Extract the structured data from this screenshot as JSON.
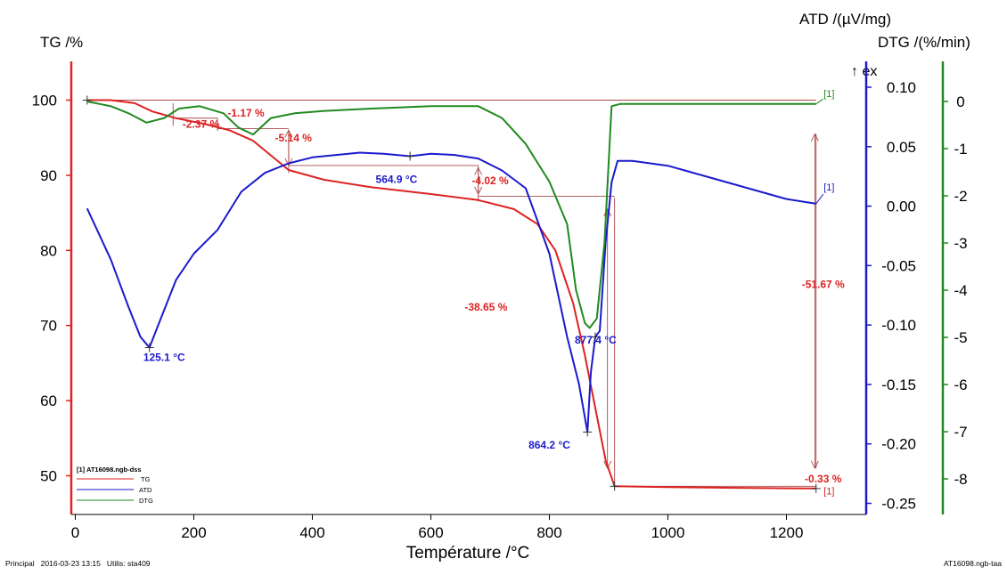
{
  "chart_data": {
    "type": "line",
    "xlabel": "Température /°C",
    "xlim": [
      0,
      1300
    ],
    "x_ticks": [
      0,
      200,
      400,
      600,
      800,
      1000,
      1200
    ],
    "axes": {
      "tg": {
        "label": "TG /%",
        "ylim": [
          46,
          102
        ],
        "ticks": [
          50,
          60,
          70,
          80,
          90,
          100
        ],
        "color": "#dd2222"
      },
      "atd": {
        "label": "ATD /(µV/mg)",
        "ylim": [
          -0.258,
          0.118
        ],
        "ticks": [
          "0.10",
          "0.05",
          "0.00",
          "-0.05",
          "-0.10",
          "-0.15",
          "-0.20",
          "-0.25"
        ],
        "color": "#1a1acc"
      },
      "dtg": {
        "label": "DTG /(%/min)",
        "ylim": [
          -8.75,
          0.55
        ],
        "ticks": [
          "0",
          "-1",
          "-2",
          "-3",
          "-4",
          "-5",
          "-6",
          "-7",
          "-8"
        ],
        "color": "#1f8a1f"
      }
    },
    "exo_label": "↑ ex",
    "series": [
      {
        "name": "TG",
        "axis": "tg",
        "color": "#dd2222",
        "x": [
          20,
          60,
          100,
          130,
          170,
          220,
          260,
          300,
          360,
          420,
          500,
          600,
          680,
          740,
          780,
          810,
          840,
          860,
          880,
          895,
          910,
          1000,
          1100,
          1250
        ],
        "y": [
          100,
          100,
          99.6,
          98.5,
          97.6,
          96.8,
          96.0,
          94.6,
          90.7,
          89.4,
          88.4,
          87.5,
          86.7,
          85.5,
          83.5,
          80.0,
          73.0,
          66.0,
          58.0,
          52.0,
          48.6,
          48.5,
          48.4,
          48.3
        ]
      },
      {
        "name": "ATD",
        "axis": "atd",
        "color": "#1a1acc",
        "x": [
          20,
          60,
          90,
          110,
          125.1,
          140,
          170,
          200,
          240,
          280,
          320,
          360,
          400,
          440,
          480,
          520,
          564.9,
          600,
          640,
          680,
          720,
          760,
          800,
          830,
          850,
          864.2,
          870,
          877.4,
          885,
          895,
          905,
          915,
          940,
          1000,
          1100,
          1200,
          1250
        ],
        "y": [
          -0.002,
          -0.045,
          -0.085,
          -0.11,
          -0.119,
          -0.1,
          -0.062,
          -0.04,
          -0.02,
          0.012,
          0.028,
          0.036,
          0.041,
          0.043,
          0.045,
          0.044,
          0.042,
          0.044,
          0.043,
          0.04,
          0.03,
          0.015,
          -0.04,
          -0.11,
          -0.15,
          -0.19,
          -0.14,
          -0.11,
          -0.105,
          -0.03,
          0.02,
          0.038,
          0.038,
          0.034,
          0.02,
          0.006,
          0.002
        ]
      },
      {
        "name": "DTG",
        "axis": "dtg",
        "color": "#1f8a1f",
        "x": [
          20,
          60,
          90,
          120,
          150,
          175,
          210,
          250,
          275,
          300,
          330,
          370,
          420,
          500,
          600,
          680,
          720,
          760,
          800,
          830,
          845,
          860,
          868,
          880,
          893,
          905,
          920,
          1000,
          1100,
          1250
        ],
        "y": [
          0,
          -0.1,
          -0.25,
          -0.45,
          -0.35,
          -0.15,
          -0.1,
          -0.25,
          -0.55,
          -0.7,
          -0.35,
          -0.25,
          -0.2,
          -0.15,
          -0.1,
          -0.1,
          -0.35,
          -0.9,
          -1.7,
          -2.6,
          -4.0,
          -4.7,
          -4.8,
          -4.6,
          -3.0,
          -0.1,
          -0.05,
          -0.05,
          -0.05,
          -0.05
        ]
      }
    ],
    "annotations": [
      {
        "text": "-2.37 %",
        "x": 212,
        "tg": 96.3,
        "color": "#dd2222"
      },
      {
        "text": "-1.17 %",
        "x": 288,
        "tg": 97.8,
        "color": "#dd2222"
      },
      {
        "text": "-5.14 %",
        "x": 368,
        "tg": 94.5,
        "color": "#dd2222"
      },
      {
        "text": "564.9 °C",
        "x": 542,
        "tg": 89.0,
        "color": "#1a1acc"
      },
      {
        "text": "-4.02 %",
        "x": 700,
        "tg": 88.8,
        "color": "#dd2222"
      },
      {
        "text": "-38.65 %",
        "x": 693,
        "tg": 72.0,
        "color": "#dd2222"
      },
      {
        "text": "-51.67 %",
        "x": 1262,
        "tg": 75.0,
        "color": "#dd2222"
      },
      {
        "text": "125.1 °C",
        "x": 150,
        "tg": 65.3,
        "color": "#1a1acc"
      },
      {
        "text": "877.4 °C",
        "x": 878,
        "tg": 67.6,
        "color": "#1a1acc"
      },
      {
        "text": "864.2 °C",
        "x": 800,
        "tg": 53.6,
        "color": "#1a1acc"
      },
      {
        "text": "-0.33 %",
        "x": 1262,
        "tg": 49.1,
        "color": "#dd2222"
      }
    ],
    "markers": [
      {
        "text": "[1]",
        "x": 1272,
        "tg": 100.4,
        "color": "#1f8a1f"
      },
      {
        "text": "[1]",
        "x": 1272,
        "tg": 88.0,
        "color": "#1a1acc"
      },
      {
        "text": "[1]",
        "x": 1272,
        "tg": 47.5,
        "color": "#dd2222"
      }
    ],
    "legend": {
      "title": "[1] AT16098.ngb-dss",
      "entries": [
        {
          "name": "TG",
          "color": "#dd2222"
        },
        {
          "name": "ATD",
          "color": "#1a1acc"
        },
        {
          "name": "DTG",
          "color": "#1f8a1f"
        }
      ],
      "placement": "bottom-left"
    }
  },
  "footer": {
    "left": "Principal   2016-03-23 13:15   Utilis: sta409",
    "right": "AT16098.ngb-taa"
  }
}
